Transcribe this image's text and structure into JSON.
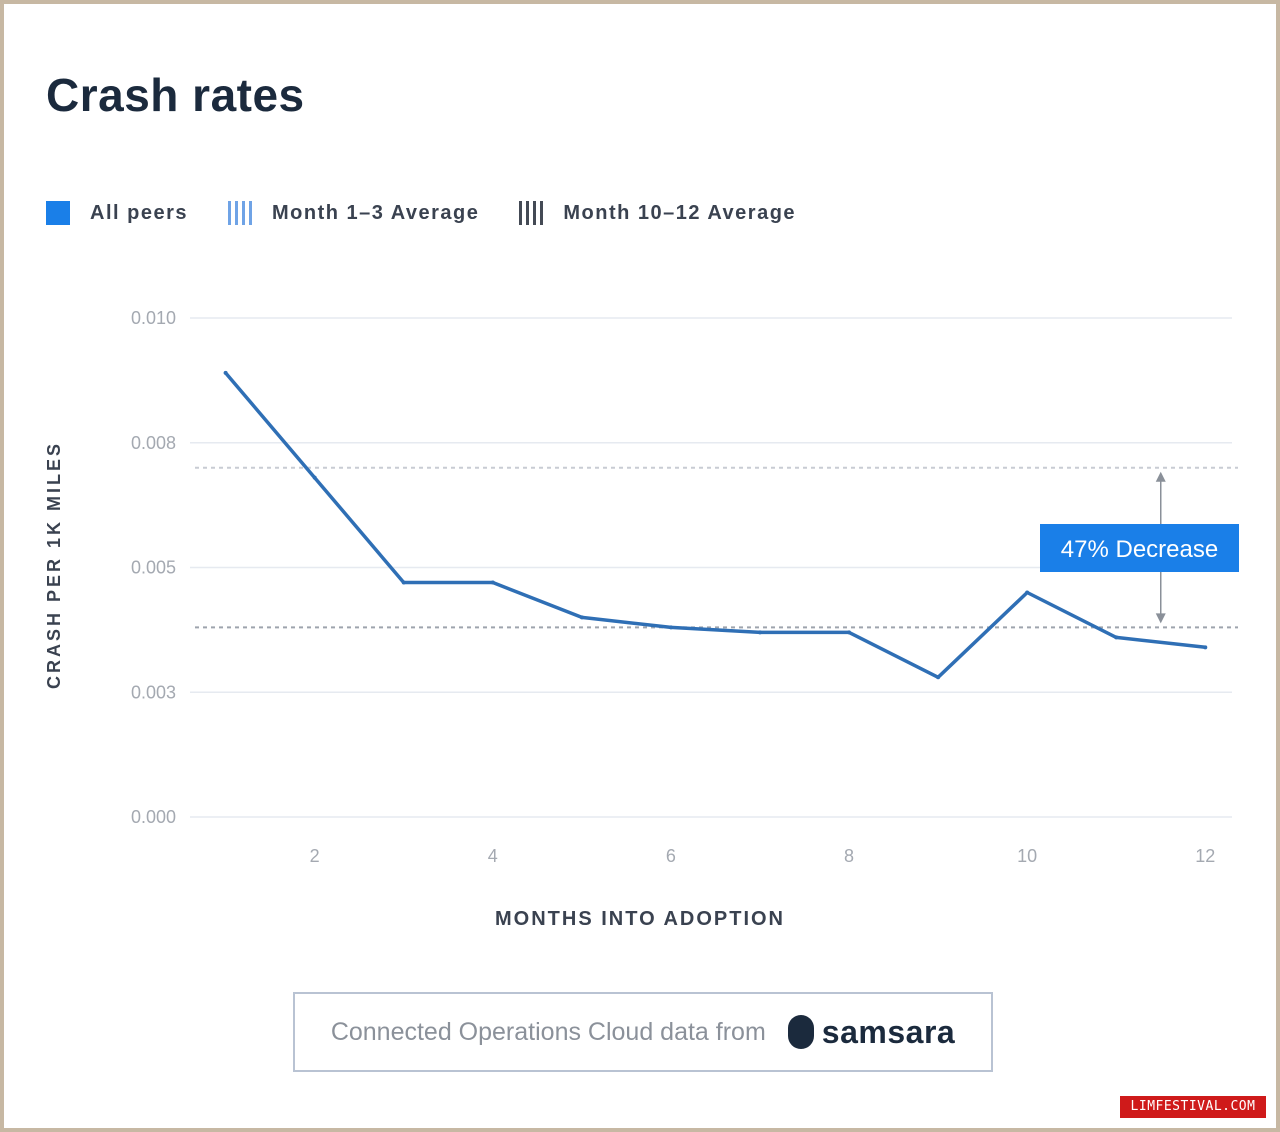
{
  "chart_data": {
    "type": "line",
    "title": "Crash rates",
    "xlabel": "MONTHS INTO ADOPTION",
    "ylabel": "CRASH PER 1K MILES",
    "xlim": [
      0.6,
      12.3
    ],
    "ylim": [
      0,
      0.01
    ],
    "x_ticks": [
      2,
      4,
      6,
      8,
      10,
      12
    ],
    "x_tick_labels": [
      "2",
      "4",
      "6",
      "8",
      "10",
      "12"
    ],
    "y_ticks": [
      0,
      0.0025,
      0.005,
      0.0075,
      0.01
    ],
    "y_tick_labels": [
      "0.000",
      "0.003",
      "0.005",
      "0.008",
      "0.010"
    ],
    "grid": true,
    "legend_position": "top-left",
    "series": [
      {
        "name": "All peers",
        "color": "#2f6fb5",
        "x": [
          1,
          2,
          3,
          4,
          5,
          6,
          7,
          8,
          9,
          10,
          11,
          12
        ],
        "values": [
          0.0089,
          0.0068,
          0.0047,
          0.0047,
          0.004,
          0.0038,
          0.0037,
          0.0037,
          0.0028,
          0.0045,
          0.0036,
          0.0034
        ]
      }
    ],
    "reference_lines": [
      {
        "name": "Month 1–3 Average",
        "value": 0.007,
        "color": "#6fa3e6"
      },
      {
        "name": "Month 10–12 Average",
        "value": 0.0038,
        "color": "#444a55"
      }
    ],
    "annotation": {
      "text": "47% Decrease",
      "x": 11.5,
      "color": "#1a7fe8"
    }
  },
  "legend": {
    "items": [
      {
        "label": "All peers",
        "icon": "solid-square-icon"
      },
      {
        "label": "Month 1–3 Average",
        "icon": "blue-stripes-icon"
      },
      {
        "label": "Month 10–12 Average",
        "icon": "gray-stripes-icon"
      }
    ]
  },
  "footer": {
    "text": "Connected Operations Cloud data from",
    "logo_text": "samsara"
  },
  "watermark": "LIMFESTIVAL.COM"
}
